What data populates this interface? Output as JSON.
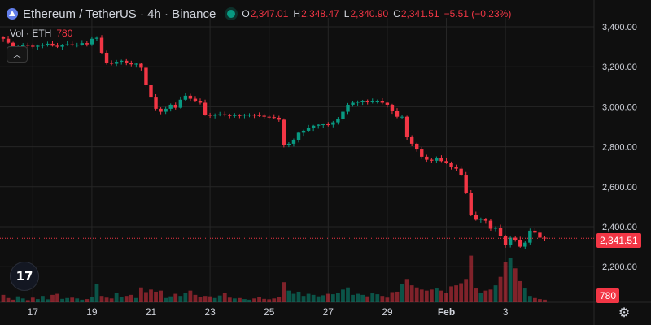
{
  "header": {
    "symbol": "Ethereum / TetherUS · 4h · Binance",
    "ohlc": [
      {
        "k": "O",
        "v": "2,347.01"
      },
      {
        "k": "H",
        "v": "2,348.47"
      },
      {
        "k": "L",
        "v": "2,340.90"
      },
      {
        "k": "C",
        "v": "2,341.51"
      }
    ],
    "change": "−5.51 (−0.23%)",
    "icon": "ethereum-icon"
  },
  "volume_legend": {
    "label": "Vol · ETH",
    "value": "780"
  },
  "last_price_label": "2,341.51",
  "volume_label": "780",
  "colors": {
    "up": "#089981",
    "down": "#f23645",
    "background": "#0f0f0f",
    "grid": "#262626",
    "text": "#d1d4dc"
  },
  "chart_data": {
    "type": "candlestick",
    "interval": "4h",
    "exchange": "Binance",
    "ylim": [
      2160,
      3440
    ],
    "y_ticks": [
      {
        "value": 3400,
        "label": "3,400.00"
      },
      {
        "value": 3200,
        "label": "3,200.00"
      },
      {
        "value": 3000,
        "label": "3,000.00"
      },
      {
        "value": 2800,
        "label": "2,800.00"
      },
      {
        "value": 2600,
        "label": "2,600.00"
      },
      {
        "value": 2400,
        "label": "2,400.00"
      },
      {
        "value": 2200,
        "label": "2,200.00"
      }
    ],
    "x_ticks": [
      {
        "index": 6,
        "label": "17"
      },
      {
        "index": 18,
        "label": "19"
      },
      {
        "index": 30,
        "label": "21"
      },
      {
        "index": 42,
        "label": "23"
      },
      {
        "index": 54,
        "label": "25"
      },
      {
        "index": 66,
        "label": "27"
      },
      {
        "index": 78,
        "label": "29"
      },
      {
        "index": 90,
        "label": "Feb"
      },
      {
        "index": 102,
        "label": "3"
      }
    ],
    "closes": [
      3340,
      3320,
      3295,
      3300,
      3310,
      3305,
      3300,
      3305,
      3310,
      3315,
      3305,
      3300,
      3308,
      3312,
      3308,
      3310,
      3318,
      3312,
      3340,
      3345,
      3270,
      3220,
      3215,
      3225,
      3230,
      3220,
      3212,
      3215,
      3195,
      3110,
      3050,
      2990,
      2975,
      2990,
      3010,
      2995,
      3035,
      3055,
      3040,
      3030,
      3020,
      2960,
      2955,
      2960,
      2962,
      2958,
      2955,
      2958,
      2957,
      2960,
      2960,
      2958,
      2955,
      2950,
      2948,
      2945,
      2935,
      2810,
      2815,
      2835,
      2870,
      2880,
      2895,
      2905,
      2910,
      2912,
      2910,
      2922,
      2940,
      2975,
      3010,
      3020,
      3025,
      3030,
      3025,
      3030,
      3030,
      3020,
      3010,
      2980,
      2950,
      2950,
      2850,
      2815,
      2790,
      2750,
      2735,
      2730,
      2742,
      2728,
      2720,
      2700,
      2690,
      2660,
      2570,
      2460,
      2435,
      2440,
      2430,
      2390,
      2395,
      2355,
      2310,
      2345,
      2335,
      2300,
      2320,
      2380,
      2370,
      2345,
      2342
    ],
    "volumes": [
      35,
      20,
      12,
      28,
      18,
      10,
      22,
      15,
      30,
      14,
      35,
      40,
      16,
      20,
      22,
      18,
      12,
      15,
      25,
      85,
      30,
      22,
      18,
      45,
      25,
      30,
      35,
      20,
      70,
      48,
      60,
      50,
      55,
      20,
      28,
      40,
      30,
      45,
      55,
      35,
      25,
      30,
      28,
      20,
      32,
      45,
      22,
      18,
      20,
      15,
      12,
      18,
      25,
      16,
      14,
      18,
      26,
      95,
      55,
      40,
      50,
      30,
      40,
      35,
      28,
      33,
      40,
      38,
      45,
      60,
      70,
      35,
      40,
      35,
      28,
      42,
      38,
      30,
      22,
      48,
      50,
      85,
      110,
      80,
      70,
      60,
      55,
      60,
      65,
      55,
      45,
      75,
      80,
      90,
      110,
      220,
      65,
      45,
      55,
      60,
      80,
      120,
      190,
      210,
      160,
      100,
      65,
      30,
      20,
      15,
      12
    ]
  }
}
